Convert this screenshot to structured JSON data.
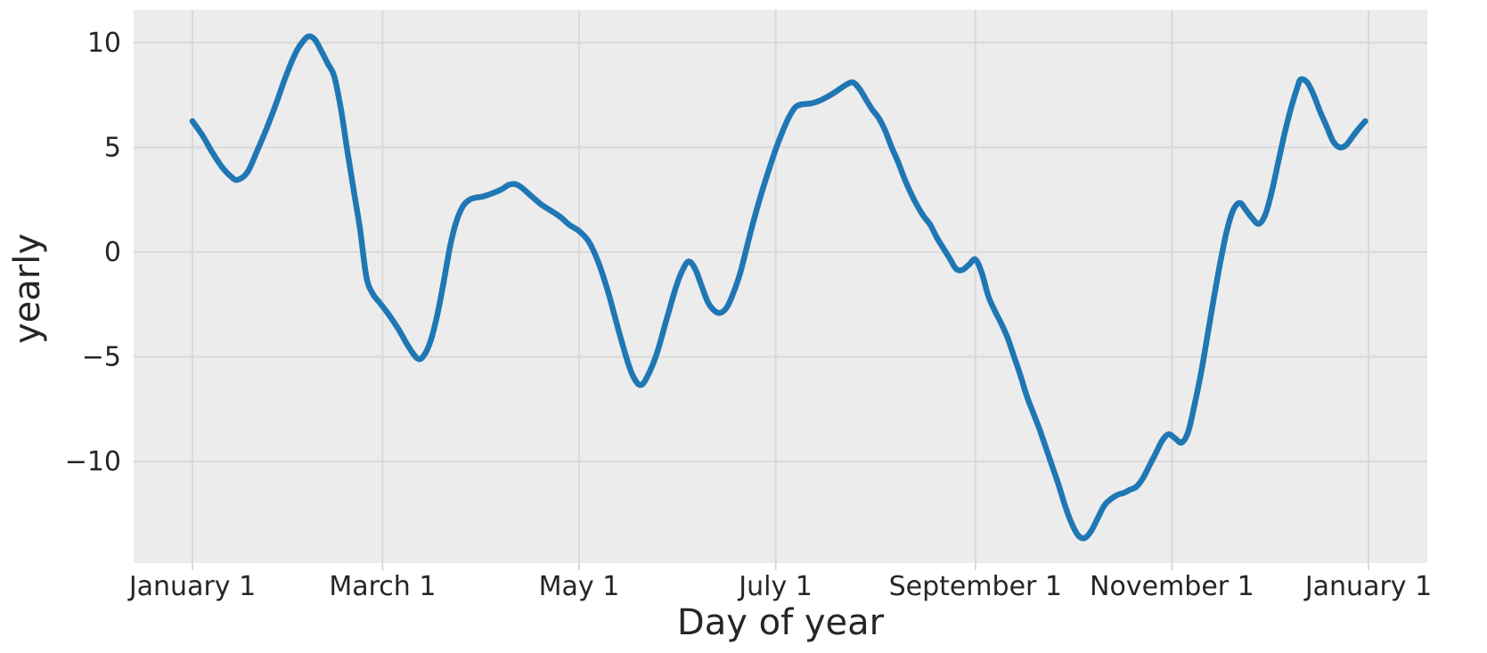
{
  "figure": {
    "xlabel": "Day of year",
    "ylabel": "yearly"
  },
  "chart_data": {
    "type": "line",
    "title": "",
    "xlabel": "Day of year",
    "ylabel": "yearly",
    "grid": true,
    "legend_position": "none",
    "xlim": [
      -18.25,
      383.25
    ],
    "ylim": [
      -14.85,
      11.57
    ],
    "x_ticks": [
      {
        "label": "January 1",
        "day": 0
      },
      {
        "label": "March 1",
        "day": 59
      },
      {
        "label": "May 1",
        "day": 120
      },
      {
        "label": "July 1",
        "day": 181
      },
      {
        "label": "September 1",
        "day": 243
      },
      {
        "label": "November 1",
        "day": 304
      },
      {
        "label": "January 1",
        "day": 365
      }
    ],
    "y_ticks": [
      {
        "label": "10",
        "value": 10
      },
      {
        "label": "5",
        "value": 5
      },
      {
        "label": "0",
        "value": 0
      },
      {
        "label": "−5",
        "value": -5
      },
      {
        "label": "−10",
        "value": -10
      }
    ],
    "series": [
      {
        "name": "yearly",
        "color": "#1f77b4",
        "linewidth": 6.5,
        "x": [
          0,
          3,
          6,
          9,
          12,
          14,
          17,
          20,
          23,
          26,
          29,
          32,
          34,
          36,
          38,
          40,
          42,
          44,
          46,
          48,
          50,
          52,
          54,
          56,
          58,
          61,
          64,
          67,
          70,
          72,
          74,
          76,
          78,
          80,
          82,
          84,
          86,
          88,
          90,
          93,
          96,
          98,
          100,
          102,
          105,
          108,
          111,
          114,
          117,
          120,
          123,
          126,
          129,
          132,
          135,
          137,
          139,
          141,
          144,
          147,
          150,
          152,
          154,
          156,
          158,
          160,
          162,
          164,
          166,
          168,
          170,
          172,
          174,
          176,
          178,
          181,
          183,
          185,
          187,
          189,
          192,
          195,
          198,
          201,
          203,
          205,
          207,
          209,
          211,
          213,
          215,
          217,
          219,
          221,
          223,
          225,
          227,
          229,
          231,
          233,
          235,
          237,
          239,
          241,
          243,
          245,
          247,
          249,
          251,
          253,
          255,
          257,
          259,
          261,
          263,
          265,
          267,
          269,
          271,
          273,
          275,
          277,
          279,
          281,
          283,
          285,
          287,
          289,
          291,
          293,
          295,
          297,
          299,
          301,
          303,
          305,
          307,
          309,
          311,
          313,
          315,
          317,
          319,
          321,
          323,
          325,
          327,
          329,
          331,
          333,
          335,
          337,
          339,
          341,
          343,
          344,
          346,
          348,
          350,
          352,
          354,
          356,
          358,
          360,
          362,
          364
        ],
        "y": [
          6.25,
          5.6,
          4.8,
          4.1,
          3.6,
          3.45,
          3.8,
          4.8,
          5.9,
          7.1,
          8.4,
          9.5,
          10.0,
          10.3,
          10.15,
          9.6,
          9.0,
          8.4,
          6.9,
          4.9,
          3.0,
          1.1,
          -1.2,
          -2.0,
          -2.4,
          -3.0,
          -3.7,
          -4.5,
          -5.1,
          -4.9,
          -4.2,
          -3.0,
          -1.4,
          0.3,
          1.5,
          2.2,
          2.5,
          2.6,
          2.65,
          2.8,
          3.0,
          3.2,
          3.25,
          3.1,
          2.7,
          2.3,
          2.0,
          1.7,
          1.3,
          1.0,
          0.5,
          -0.5,
          -1.9,
          -3.6,
          -5.2,
          -6.0,
          -6.35,
          -6.0,
          -4.9,
          -3.3,
          -1.7,
          -0.9,
          -0.45,
          -0.8,
          -1.6,
          -2.4,
          -2.8,
          -2.9,
          -2.6,
          -1.9,
          -1.0,
          0.2,
          1.4,
          2.5,
          3.5,
          4.9,
          5.7,
          6.4,
          6.9,
          7.05,
          7.1,
          7.25,
          7.5,
          7.8,
          8.0,
          8.1,
          7.8,
          7.3,
          6.8,
          6.4,
          5.8,
          5.0,
          4.3,
          3.5,
          2.8,
          2.2,
          1.7,
          1.3,
          0.7,
          0.2,
          -0.3,
          -0.8,
          -0.85,
          -0.6,
          -0.35,
          -1.0,
          -2.1,
          -2.8,
          -3.4,
          -4.1,
          -5.0,
          -5.9,
          -6.9,
          -7.7,
          -8.5,
          -9.4,
          -10.3,
          -11.2,
          -12.2,
          -13.0,
          -13.55,
          -13.65,
          -13.3,
          -12.7,
          -12.1,
          -11.8,
          -11.6,
          -11.5,
          -11.35,
          -11.2,
          -10.8,
          -10.2,
          -9.6,
          -9.0,
          -8.7,
          -8.9,
          -9.1,
          -8.6,
          -7.3,
          -5.8,
          -4.0,
          -2.2,
          -0.5,
          1.0,
          2.0,
          2.35,
          2.0,
          1.6,
          1.35,
          1.8,
          2.9,
          4.3,
          5.7,
          6.9,
          7.9,
          8.25,
          8.1,
          7.5,
          6.7,
          6.0,
          5.3,
          5.0,
          5.1,
          5.5,
          5.9,
          6.25
        ]
      }
    ],
    "style": {
      "panel_background": "#ececec",
      "grid_color": "#d9d9d9",
      "figure_background": "#ffffff",
      "text_color": "#262626",
      "line_color": "#1f77b4"
    }
  }
}
